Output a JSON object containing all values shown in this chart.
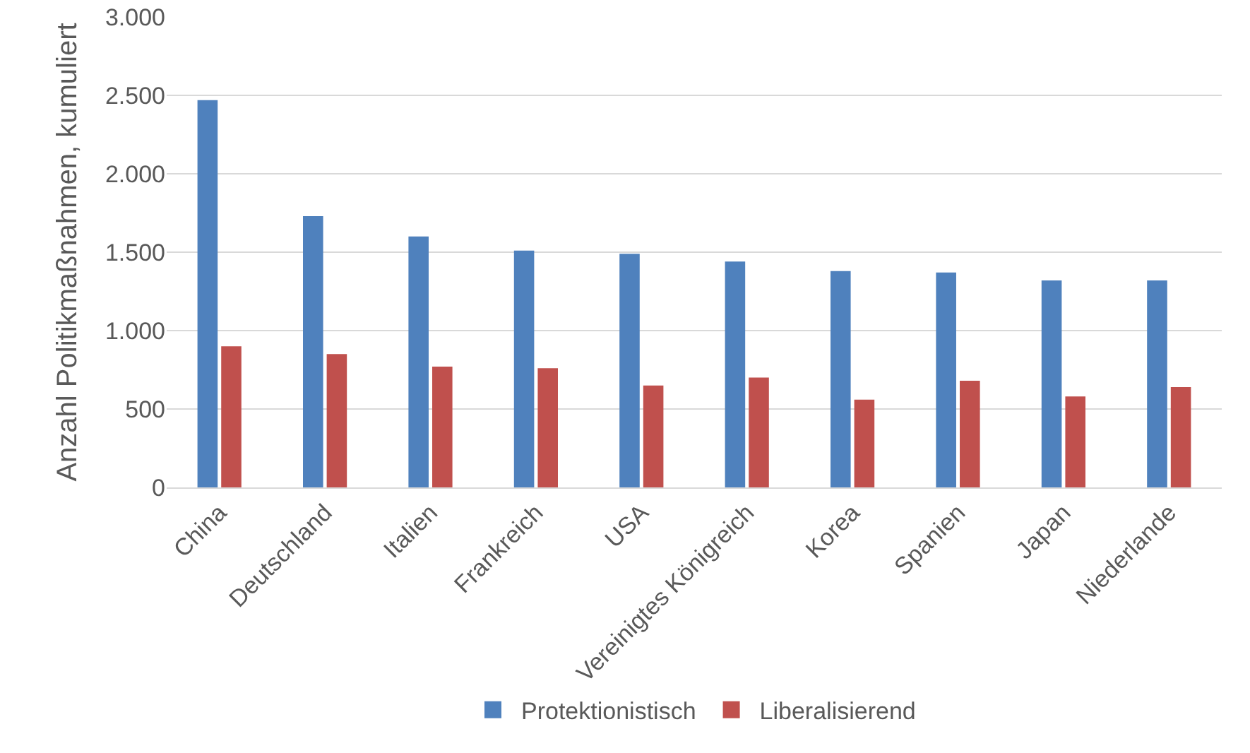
{
  "chart_data": {
    "type": "bar",
    "ylabel": "Anzahl Politikmaßnahmen, kumuliert",
    "categories": [
      "China",
      "Deutschland",
      "Italien",
      "Frankreich",
      "USA",
      "Vereinigtes Königreich",
      "Korea",
      "Spanien",
      "Japan",
      "Niederlande"
    ],
    "series": [
      {
        "name": "Protektionistisch",
        "color": "#4f81bd",
        "values": [
          2470,
          1730,
          1600,
          1510,
          1490,
          1440,
          1380,
          1370,
          1320,
          1320
        ]
      },
      {
        "name": "Liberalisierend",
        "color": "#c0504d",
        "values": [
          900,
          850,
          770,
          760,
          650,
          700,
          560,
          680,
          580,
          640
        ]
      }
    ],
    "ylim": [
      0,
      3000
    ],
    "yticks": [
      {
        "value": 0,
        "label": "0"
      },
      {
        "value": 500,
        "label": "500"
      },
      {
        "value": 1000,
        "label": "1.000"
      },
      {
        "value": 1500,
        "label": "1.500"
      },
      {
        "value": 2000,
        "label": "2.000"
      },
      {
        "value": 2500,
        "label": "2.500"
      },
      {
        "value": 3000,
        "label": "3.000"
      }
    ],
    "grid": "y",
    "legend": "bottom"
  }
}
